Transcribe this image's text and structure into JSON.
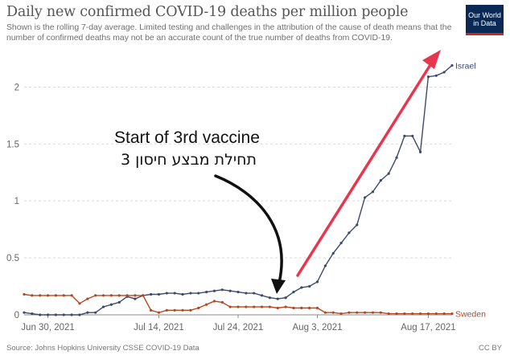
{
  "header": {
    "title": "Daily new confirmed COVID-19 deaths per million people",
    "subtitle": "Shown is the rolling 7-day average. Limited testing and challenges in the attribution of the cause of death means that the number of confirmed deaths may not be an accurate count of the true number of deaths from COVID-19.",
    "logo_line1": "Our World",
    "logo_line2": "in Data"
  },
  "footer": {
    "source": "Source: Johns Hopkins University CSSE COVID-19 Data",
    "license": "CC BY"
  },
  "annotation": {
    "text_en": "Start of 3rd vaccine",
    "text_he": "תחילת מבצע חיסון 3"
  },
  "colors": {
    "israel": "#3d4a6b",
    "sweden": "#b5481f",
    "arrow_red": "#e8364f",
    "arrow_black": "#111111",
    "grid": "#d9d9d9"
  },
  "chart_data": {
    "type": "line",
    "title": "Daily new confirmed COVID-19 deaths per million people",
    "x": [
      "Jun 27, 2021",
      "Jun 28, 2021",
      "Jun 29, 2021",
      "Jun 30, 2021",
      "Jul 1, 2021",
      "Jul 2, 2021",
      "Jul 3, 2021",
      "Jul 4, 2021",
      "Jul 5, 2021",
      "Jul 6, 2021",
      "Jul 7, 2021",
      "Jul 8, 2021",
      "Jul 9, 2021",
      "Jul 10, 2021",
      "Jul 11, 2021",
      "Jul 12, 2021",
      "Jul 13, 2021",
      "Jul 14, 2021",
      "Jul 15, 2021",
      "Jul 16, 2021",
      "Jul 17, 2021",
      "Jul 18, 2021",
      "Jul 19, 2021",
      "Jul 20, 2021",
      "Jul 21, 2021",
      "Jul 22, 2021",
      "Jul 23, 2021",
      "Jul 24, 2021",
      "Jul 25, 2021",
      "Jul 26, 2021",
      "Jul 27, 2021",
      "Jul 28, 2021",
      "Jul 29, 2021",
      "Jul 30, 2021",
      "Jul 31, 2021",
      "Aug 1, 2021",
      "Aug 2, 2021",
      "Aug 3, 2021",
      "Aug 4, 2021",
      "Aug 5, 2021",
      "Aug 6, 2021",
      "Aug 7, 2021",
      "Aug 8, 2021",
      "Aug 9, 2021",
      "Aug 10, 2021",
      "Aug 11, 2021",
      "Aug 12, 2021",
      "Aug 13, 2021",
      "Aug 14, 2021",
      "Aug 15, 2021",
      "Aug 16, 2021",
      "Aug 17, 2021",
      "Aug 18, 2021",
      "Aug 19, 2021",
      "Aug 20, 2021"
    ],
    "x_ticks": [
      "Jun 30, 2021",
      "Jul 14, 2021",
      "Jul 24, 2021",
      "Aug 3, 2021",
      "Aug 17, 2021"
    ],
    "y_ticks": [
      "0",
      "0.5",
      "1",
      "1.5",
      "2"
    ],
    "ylim": [
      0,
      2.2
    ],
    "grid": "horizontal dashed",
    "series": [
      {
        "name": "Israel",
        "values": [
          0.02,
          0.01,
          0,
          0,
          0,
          0,
          0,
          0,
          0.02,
          0.02,
          0.07,
          0.09,
          0.11,
          0.16,
          0.14,
          0.17,
          0.18,
          0.18,
          0.19,
          0.19,
          0.18,
          0.19,
          0.19,
          0.2,
          0.21,
          0.22,
          0.21,
          0.2,
          0.19,
          0.19,
          0.17,
          0.15,
          0.14,
          0.15,
          0.2,
          0.24,
          0.25,
          0.29,
          0.43,
          0.54,
          0.63,
          0.72,
          0.79,
          1.03,
          1.08,
          1.18,
          1.24,
          1.38,
          1.57,
          1.57,
          1.43,
          2.09,
          2.1,
          2.13,
          2.19
        ]
      },
      {
        "name": "Sweden",
        "values": [
          0.18,
          0.17,
          0.17,
          0.17,
          0.17,
          0.17,
          0.17,
          0.1,
          0.14,
          0.17,
          0.17,
          0.17,
          0.17,
          0.17,
          0.17,
          0.17,
          0.04,
          0.02,
          0.04,
          0.04,
          0.04,
          0.04,
          0.06,
          0.09,
          0.12,
          0.11,
          0.07,
          0.07,
          0.07,
          0.07,
          0.07,
          0.07,
          0.06,
          0.07,
          0.06,
          0.06,
          0.06,
          0.06,
          0.02,
          0.02,
          0.01,
          0.02,
          0.02,
          0.02,
          0.02,
          0.02,
          0.01,
          0.01,
          0.01,
          0.01,
          0.01,
          0.01,
          0.01,
          0.01,
          0.01
        ]
      }
    ]
  }
}
